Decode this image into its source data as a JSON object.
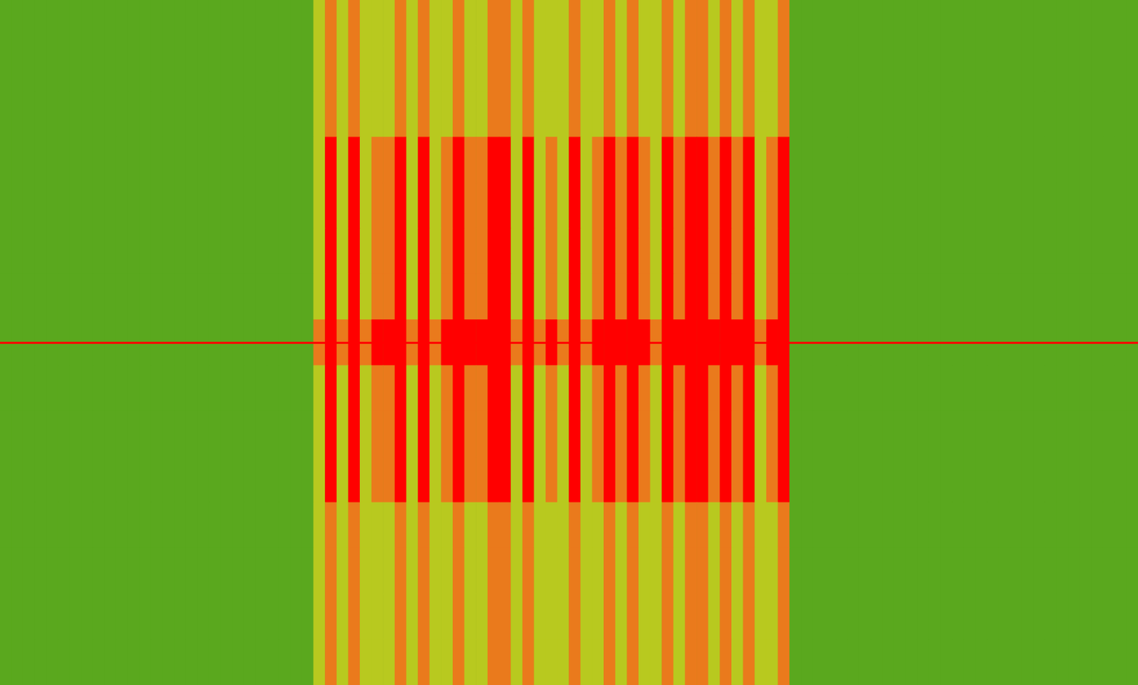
{
  "chart_data": {
    "type": "heatmap",
    "grid": false,
    "tick_labels": false,
    "color_range": [
      0,
      3
    ],
    "color_scale": [
      "#5aa81e",
      "#b8c91f",
      "#ea7a1c",
      "#ff0000"
    ],
    "carrier": {
      "row": 7,
      "color": "#ff0000"
    },
    "cells": [
      [
        0,
        0,
        0,
        0,
        0,
        0,
        0,
        0,
        0,
        0,
        0,
        0,
        0,
        0,
        0,
        0,
        0,
        0,
        0,
        0,
        0,
        0,
        0,
        0,
        0,
        0,
        0,
        1,
        2,
        1,
        2,
        1,
        1,
        1,
        2,
        1,
        2,
        1,
        1,
        2,
        1,
        1,
        2,
        2,
        1,
        2,
        1,
        1,
        1,
        2,
        1,
        1,
        2,
        1,
        2,
        1,
        1,
        2,
        1,
        2,
        2,
        1,
        2,
        1,
        2,
        1,
        1,
        2,
        0,
        0,
        0,
        0,
        0,
        0,
        0,
        0,
        0,
        0,
        0,
        0,
        0,
        0,
        0,
        0,
        0,
        0,
        0,
        0,
        0,
        0,
        0,
        0,
        0,
        0,
        0,
        0,
        0,
        0
      ],
      [
        0,
        0,
        0,
        0,
        0,
        0,
        0,
        0,
        0,
        0,
        0,
        0,
        0,
        0,
        0,
        0,
        0,
        0,
        0,
        0,
        0,
        0,
        0,
        0,
        0,
        0,
        0,
        1,
        2,
        1,
        2,
        1,
        1,
        1,
        2,
        1,
        2,
        1,
        1,
        2,
        1,
        1,
        2,
        2,
        1,
        2,
        1,
        1,
        1,
        2,
        1,
        1,
        2,
        1,
        2,
        1,
        1,
        2,
        1,
        2,
        2,
        1,
        2,
        1,
        2,
        1,
        1,
        2,
        0,
        0,
        0,
        0,
        0,
        0,
        0,
        0,
        0,
        0,
        0,
        0,
        0,
        0,
        0,
        0,
        0,
        0,
        0,
        0,
        0,
        0,
        0,
        0,
        0,
        0,
        0,
        0,
        0,
        0
      ],
      [
        0,
        0,
        0,
        0,
        0,
        0,
        0,
        0,
        0,
        0,
        0,
        0,
        0,
        0,
        0,
        0,
        0,
        0,
        0,
        0,
        0,
        0,
        0,
        0,
        0,
        0,
        0,
        1,
        2,
        1,
        2,
        1,
        1,
        1,
        2,
        1,
        2,
        1,
        1,
        2,
        1,
        1,
        2,
        2,
        1,
        2,
        1,
        1,
        1,
        2,
        1,
        1,
        2,
        1,
        2,
        1,
        1,
        2,
        1,
        2,
        2,
        1,
        2,
        1,
        2,
        1,
        1,
        2,
        0,
        0,
        0,
        0,
        0,
        0,
        0,
        0,
        0,
        0,
        0,
        0,
        0,
        0,
        0,
        0,
        0,
        0,
        0,
        0,
        0,
        0,
        0,
        0,
        0,
        0,
        0,
        0,
        0,
        0
      ],
      [
        0,
        0,
        0,
        0,
        0,
        0,
        0,
        0,
        0,
        0,
        0,
        0,
        0,
        0,
        0,
        0,
        0,
        0,
        0,
        0,
        0,
        0,
        0,
        0,
        0,
        0,
        0,
        1,
        3,
        1,
        3,
        1,
        2,
        2,
        3,
        1,
        3,
        1,
        2,
        3,
        2,
        2,
        3,
        3,
        1,
        3,
        1,
        2,
        1,
        3,
        1,
        2,
        3,
        2,
        3,
        2,
        1,
        3,
        2,
        3,
        3,
        2,
        3,
        2,
        3,
        1,
        2,
        3,
        0,
        0,
        0,
        0,
        0,
        0,
        0,
        0,
        0,
        0,
        0,
        0,
        0,
        0,
        0,
        0,
        0,
        0,
        0,
        0,
        0,
        0,
        0,
        0,
        0,
        0,
        0,
        0,
        0,
        0
      ],
      [
        0,
        0,
        0,
        0,
        0,
        0,
        0,
        0,
        0,
        0,
        0,
        0,
        0,
        0,
        0,
        0,
        0,
        0,
        0,
        0,
        0,
        0,
        0,
        0,
        0,
        0,
        0,
        1,
        3,
        1,
        3,
        1,
        2,
        2,
        3,
        1,
        3,
        1,
        2,
        3,
        2,
        2,
        3,
        3,
        1,
        3,
        1,
        2,
        1,
        3,
        1,
        2,
        3,
        2,
        3,
        2,
        1,
        3,
        2,
        3,
        3,
        2,
        3,
        2,
        3,
        1,
        2,
        3,
        0,
        0,
        0,
        0,
        0,
        0,
        0,
        0,
        0,
        0,
        0,
        0,
        0,
        0,
        0,
        0,
        0,
        0,
        0,
        0,
        0,
        0,
        0,
        0,
        0,
        0,
        0,
        0,
        0,
        0
      ],
      [
        0,
        0,
        0,
        0,
        0,
        0,
        0,
        0,
        0,
        0,
        0,
        0,
        0,
        0,
        0,
        0,
        0,
        0,
        0,
        0,
        0,
        0,
        0,
        0,
        0,
        0,
        0,
        1,
        3,
        1,
        3,
        1,
        2,
        2,
        3,
        1,
        3,
        1,
        2,
        3,
        2,
        2,
        3,
        3,
        1,
        3,
        1,
        2,
        1,
        3,
        1,
        2,
        3,
        2,
        3,
        2,
        1,
        3,
        2,
        3,
        3,
        2,
        3,
        2,
        3,
        1,
        2,
        3,
        0,
        0,
        0,
        0,
        0,
        0,
        0,
        0,
        0,
        0,
        0,
        0,
        0,
        0,
        0,
        0,
        0,
        0,
        0,
        0,
        0,
        0,
        0,
        0,
        0,
        0,
        0,
        0,
        0,
        0
      ],
      [
        0,
        0,
        0,
        0,
        0,
        0,
        0,
        0,
        0,
        0,
        0,
        0,
        0,
        0,
        0,
        0,
        0,
        0,
        0,
        0,
        0,
        0,
        0,
        0,
        0,
        0,
        0,
        1,
        3,
        1,
        3,
        1,
        2,
        2,
        3,
        1,
        3,
        1,
        2,
        3,
        2,
        2,
        3,
        3,
        1,
        3,
        1,
        2,
        1,
        3,
        1,
        2,
        3,
        2,
        3,
        2,
        1,
        3,
        2,
        3,
        3,
        2,
        3,
        2,
        3,
        1,
        2,
        3,
        0,
        0,
        0,
        0,
        0,
        0,
        0,
        0,
        0,
        0,
        0,
        0,
        0,
        0,
        0,
        0,
        0,
        0,
        0,
        0,
        0,
        0,
        0,
        0,
        0,
        0,
        0,
        0,
        0,
        0
      ],
      [
        0,
        0,
        0,
        0,
        0,
        0,
        0,
        0,
        0,
        0,
        0,
        0,
        0,
        0,
        0,
        0,
        0,
        0,
        0,
        0,
        0,
        0,
        0,
        0,
        0,
        0,
        0,
        2,
        3,
        2,
        3,
        2,
        3,
        3,
        3,
        2,
        3,
        2,
        3,
        3,
        3,
        3,
        3,
        3,
        2,
        3,
        2,
        3,
        2,
        3,
        2,
        3,
        3,
        3,
        3,
        3,
        2,
        3,
        3,
        3,
        3,
        3,
        3,
        3,
        3,
        2,
        3,
        3,
        0,
        0,
        0,
        0,
        0,
        0,
        0,
        0,
        0,
        0,
        0,
        0,
        0,
        0,
        0,
        0,
        0,
        0,
        0,
        0,
        0,
        0,
        0,
        0,
        0,
        0,
        0,
        0,
        0,
        0
      ],
      [
        0,
        0,
        0,
        0,
        0,
        0,
        0,
        0,
        0,
        0,
        0,
        0,
        0,
        0,
        0,
        0,
        0,
        0,
        0,
        0,
        0,
        0,
        0,
        0,
        0,
        0,
        0,
        1,
        3,
        1,
        3,
        1,
        2,
        2,
        3,
        1,
        3,
        1,
        2,
        3,
        2,
        2,
        3,
        3,
        1,
        3,
        1,
        2,
        1,
        3,
        1,
        2,
        3,
        2,
        3,
        2,
        1,
        3,
        2,
        3,
        3,
        2,
        3,
        2,
        3,
        1,
        2,
        3,
        0,
        0,
        0,
        0,
        0,
        0,
        0,
        0,
        0,
        0,
        0,
        0,
        0,
        0,
        0,
        0,
        0,
        0,
        0,
        0,
        0,
        0,
        0,
        0,
        0,
        0,
        0,
        0,
        0,
        0
      ],
      [
        0,
        0,
        0,
        0,
        0,
        0,
        0,
        0,
        0,
        0,
        0,
        0,
        0,
        0,
        0,
        0,
        0,
        0,
        0,
        0,
        0,
        0,
        0,
        0,
        0,
        0,
        0,
        1,
        3,
        1,
        3,
        1,
        2,
        2,
        3,
        1,
        3,
        1,
        2,
        3,
        2,
        2,
        3,
        3,
        1,
        3,
        1,
        2,
        1,
        3,
        1,
        2,
        3,
        2,
        3,
        2,
        1,
        3,
        2,
        3,
        3,
        2,
        3,
        2,
        3,
        1,
        2,
        3,
        0,
        0,
        0,
        0,
        0,
        0,
        0,
        0,
        0,
        0,
        0,
        0,
        0,
        0,
        0,
        0,
        0,
        0,
        0,
        0,
        0,
        0,
        0,
        0,
        0,
        0,
        0,
        0,
        0,
        0
      ],
      [
        0,
        0,
        0,
        0,
        0,
        0,
        0,
        0,
        0,
        0,
        0,
        0,
        0,
        0,
        0,
        0,
        0,
        0,
        0,
        0,
        0,
        0,
        0,
        0,
        0,
        0,
        0,
        1,
        3,
        1,
        3,
        1,
        2,
        2,
        3,
        1,
        3,
        1,
        2,
        3,
        2,
        2,
        3,
        3,
        1,
        3,
        1,
        2,
        1,
        3,
        1,
        2,
        3,
        2,
        3,
        2,
        1,
        3,
        2,
        3,
        3,
        2,
        3,
        2,
        3,
        1,
        2,
        3,
        0,
        0,
        0,
        0,
        0,
        0,
        0,
        0,
        0,
        0,
        0,
        0,
        0,
        0,
        0,
        0,
        0,
        0,
        0,
        0,
        0,
        0,
        0,
        0,
        0,
        0,
        0,
        0,
        0,
        0
      ],
      [
        0,
        0,
        0,
        0,
        0,
        0,
        0,
        0,
        0,
        0,
        0,
        0,
        0,
        0,
        0,
        0,
        0,
        0,
        0,
        0,
        0,
        0,
        0,
        0,
        0,
        0,
        0,
        1,
        2,
        1,
        2,
        1,
        1,
        1,
        2,
        1,
        2,
        1,
        1,
        2,
        1,
        1,
        2,
        2,
        1,
        2,
        1,
        1,
        1,
        2,
        1,
        1,
        2,
        1,
        2,
        1,
        1,
        2,
        1,
        2,
        2,
        1,
        2,
        1,
        2,
        1,
        1,
        2,
        0,
        0,
        0,
        0,
        0,
        0,
        0,
        0,
        0,
        0,
        0,
        0,
        0,
        0,
        0,
        0,
        0,
        0,
        0,
        0,
        0,
        0,
        0,
        0,
        0,
        0,
        0,
        0,
        0,
        0
      ],
      [
        0,
        0,
        0,
        0,
        0,
        0,
        0,
        0,
        0,
        0,
        0,
        0,
        0,
        0,
        0,
        0,
        0,
        0,
        0,
        0,
        0,
        0,
        0,
        0,
        0,
        0,
        0,
        1,
        2,
        1,
        2,
        1,
        1,
        1,
        2,
        1,
        2,
        1,
        1,
        2,
        1,
        1,
        2,
        2,
        1,
        2,
        1,
        1,
        1,
        2,
        1,
        1,
        2,
        1,
        2,
        1,
        1,
        2,
        1,
        2,
        2,
        1,
        2,
        1,
        2,
        1,
        1,
        2,
        0,
        0,
        0,
        0,
        0,
        0,
        0,
        0,
        0,
        0,
        0,
        0,
        0,
        0,
        0,
        0,
        0,
        0,
        0,
        0,
        0,
        0,
        0,
        0,
        0,
        0,
        0,
        0,
        0,
        0
      ],
      [
        0,
        0,
        0,
        0,
        0,
        0,
        0,
        0,
        0,
        0,
        0,
        0,
        0,
        0,
        0,
        0,
        0,
        0,
        0,
        0,
        0,
        0,
        0,
        0,
        0,
        0,
        0,
        1,
        2,
        1,
        2,
        1,
        1,
        1,
        2,
        1,
        2,
        1,
        1,
        2,
        1,
        1,
        2,
        2,
        1,
        2,
        1,
        1,
        1,
        2,
        1,
        1,
        2,
        1,
        2,
        1,
        1,
        2,
        1,
        2,
        2,
        1,
        2,
        1,
        2,
        1,
        1,
        2,
        0,
        0,
        0,
        0,
        0,
        0,
        0,
        0,
        0,
        0,
        0,
        0,
        0,
        0,
        0,
        0,
        0,
        0,
        0,
        0,
        0,
        0,
        0,
        0,
        0,
        0,
        0,
        0,
        0,
        0
      ],
      [
        0,
        0,
        0,
        0,
        0,
        0,
        0,
        0,
        0,
        0,
        0,
        0,
        0,
        0,
        0,
        0,
        0,
        0,
        0,
        0,
        0,
        0,
        0,
        0,
        0,
        0,
        0,
        1,
        2,
        1,
        2,
        1,
        1,
        1,
        2,
        1,
        2,
        1,
        1,
        2,
        1,
        1,
        2,
        2,
        1,
        2,
        1,
        1,
        1,
        2,
        1,
        1,
        2,
        1,
        2,
        1,
        1,
        2,
        1,
        2,
        2,
        1,
        2,
        1,
        2,
        1,
        1,
        2,
        0,
        0,
        0,
        0,
        0,
        0,
        0,
        0,
        0,
        0,
        0,
        0,
        0,
        0,
        0,
        0,
        0,
        0,
        0,
        0,
        0,
        0,
        0,
        0,
        0,
        0,
        0,
        0,
        0,
        0
      ]
    ]
  }
}
